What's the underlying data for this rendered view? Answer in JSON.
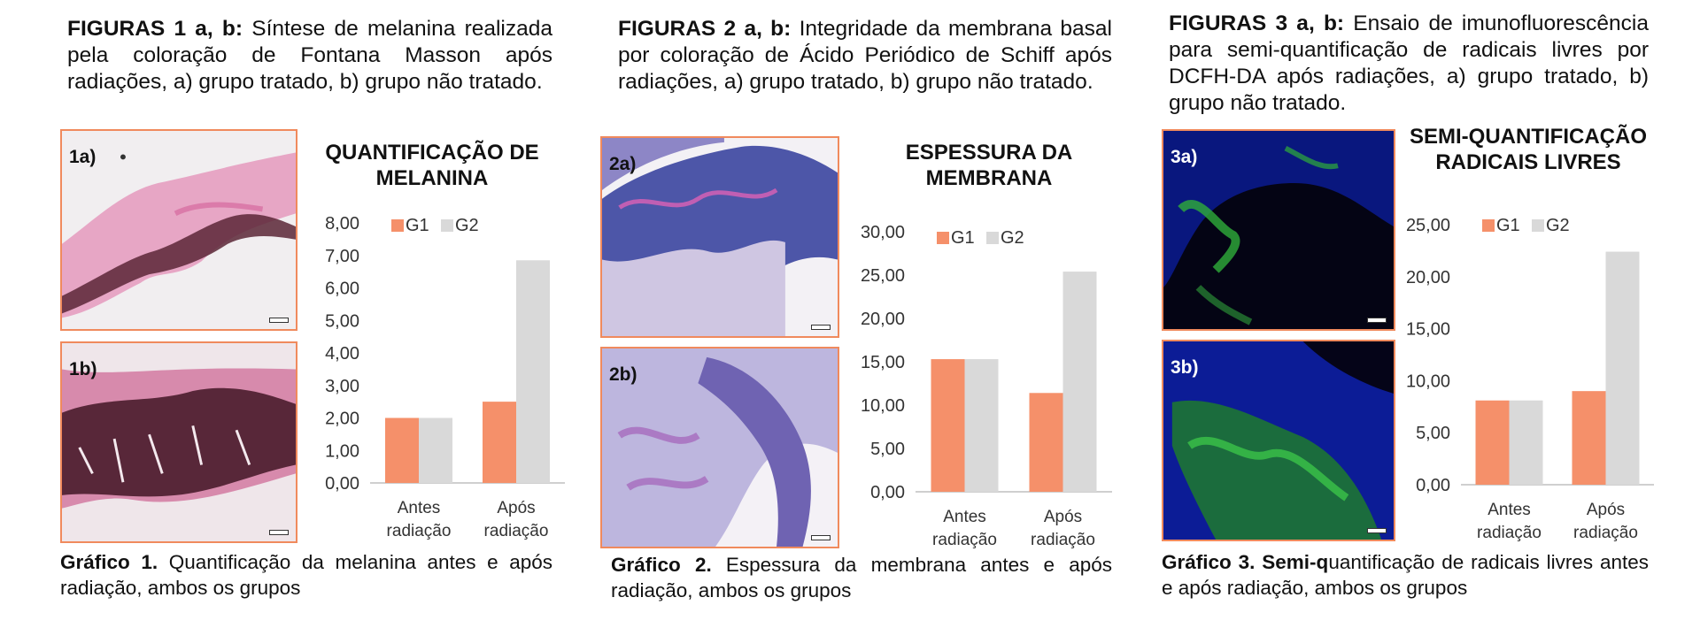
{
  "colors": {
    "g1": "#f5906a",
    "g2": "#d9d9d9",
    "frame": "#f08a5d"
  },
  "panels": [
    {
      "title_bold": "FIGURAS 1 a, b:",
      "title_rest": " Síntese de melanina realizada pela coloração de Fontana Masson após radiações, a) grupo tratado, b) grupo não tratado.",
      "img_a_label": "1a)",
      "img_b_label": "1b)",
      "chart_title": "QUANTIFICAÇÃO DE MELANINA",
      "caption_bold": "Gráfico 1.",
      "caption_rest": " Quantificação da melanina antes e após radiação, ambos os grupos"
    },
    {
      "title_bold": "FIGURAS 2 a, b:",
      "title_rest": " Integridade da membrana basal por coloração de Ácido Periódico de Schiff após radiações, a) grupo tratado, b) grupo não tratado.",
      "img_a_label": "2a)",
      "img_b_label": "2b)",
      "chart_title": "ESPESSURA DA MEMBRANA",
      "caption_bold": "Gráfico 2.",
      "caption_rest": " Espessura da membrana antes e após radiação, ambos os grupos"
    },
    {
      "title_bold": "FIGURAS 3 a, b:",
      "title_rest": " Ensaio de imunofluorescência para semi-quantificação de radicais livres por DCFH-DA após radiações, a) grupo tratado, b) grupo não tratado.",
      "img_a_label": "3a)",
      "img_b_label": "3b)",
      "chart_title": "SEMI-QUANTIFICAÇÃO RADICAIS LIVRES",
      "caption_bold": "Gráfico 3. Semi-q",
      "caption_rest": "uantificação de radicais livres antes e após radiação, ambos os grupos"
    }
  ],
  "chart_data": [
    {
      "type": "bar",
      "title": "QUANTIFICAÇÃO DE MELANINA",
      "categories": [
        [
          "Antes",
          "radiação"
        ],
        [
          "Após",
          "radiação"
        ]
      ],
      "series": [
        {
          "name": "G1",
          "values": [
            2.0,
            2.5
          ]
        },
        {
          "name": "G2",
          "values": [
            2.0,
            6.85
          ]
        }
      ],
      "ylim": [
        0,
        8
      ],
      "ytick_step": 1,
      "ytick_labels": [
        "0,00",
        "1,00",
        "2,00",
        "3,00",
        "4,00",
        "5,00",
        "6,00",
        "7,00",
        "8,00"
      ],
      "legend": "top",
      "grid": false
    },
    {
      "type": "bar",
      "title": "ESPESSURA DA MEMBRANA",
      "categories": [
        [
          "Antes",
          "radiação"
        ],
        [
          "Após",
          "radiação"
        ]
      ],
      "series": [
        {
          "name": "G1",
          "values": [
            15.3,
            11.4
          ]
        },
        {
          "name": "G2",
          "values": [
            15.3,
            25.4
          ]
        }
      ],
      "ylim": [
        0,
        30
      ],
      "ytick_step": 5,
      "ytick_labels": [
        "0,00",
        "5,00",
        "10,00",
        "15,00",
        "20,00",
        "25,00",
        "30,00"
      ],
      "legend": "top",
      "grid": false
    },
    {
      "type": "bar",
      "title": "SEMI-QUANTIFICAÇÃO RADICAIS LIVRES",
      "categories": [
        [
          "Antes",
          "radiação"
        ],
        [
          "Após",
          "radiação"
        ]
      ],
      "series": [
        {
          "name": "G1",
          "values": [
            8.1,
            9.0
          ]
        },
        {
          "name": "G2",
          "values": [
            8.1,
            22.4
          ]
        }
      ],
      "ylim": [
        0,
        25
      ],
      "ytick_step": 5,
      "ytick_labels": [
        "0,00",
        "5,00",
        "10,00",
        "15,00",
        "20,00",
        "25,00"
      ],
      "legend": "top",
      "grid": false
    }
  ]
}
